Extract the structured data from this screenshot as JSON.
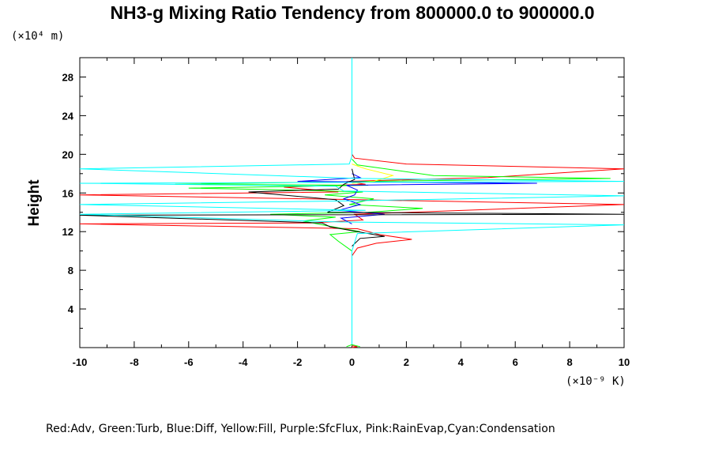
{
  "chart_data": {
    "type": "line",
    "title": "NH3-g Mixing Ratio Tendency from 800000.0 to 900000.0",
    "ylabel": "Height",
    "y_unit_label": "(×10⁴ m)",
    "x_unit_label": "(×10⁻⁹ K)",
    "xlim": [
      -10,
      10
    ],
    "ylim": [
      0,
      30
    ],
    "xticks": [
      "-10",
      "-8",
      "-6",
      "-4",
      "-2",
      "0",
      "2",
      "4",
      "6",
      "8",
      "10"
    ],
    "yticks": [
      "4",
      "8",
      "12",
      "16",
      "20",
      "24",
      "28"
    ],
    "legend_text": "Red:Adv, Green:Turb, Blue:Diff, Yellow:Fill, Purple:SfcFlux, Pink:RainEvap,Cyan:Condensation",
    "grid": false,
    "series": [
      {
        "color": "#ff0000",
        "points": [
          [
            0,
            8
          ],
          [
            0,
            9.5
          ],
          [
            0.2,
            10.3
          ],
          [
            0.9,
            10.8
          ],
          [
            2.2,
            11.2
          ],
          [
            1.0,
            11.7
          ],
          [
            0.2,
            12.3
          ],
          [
            -10,
            12.8
          ],
          [
            -1.5,
            12.9
          ],
          [
            0.4,
            13.2
          ],
          [
            0.1,
            13.8
          ],
          [
            10,
            14.8
          ],
          [
            0.2,
            15.3
          ],
          [
            -10,
            15.8
          ],
          [
            -0.5,
            16.1
          ],
          [
            -2.5,
            16.6
          ],
          [
            0.5,
            16.9
          ],
          [
            -0.2,
            17.2
          ],
          [
            5.0,
            17.6
          ],
          [
            10,
            18.5
          ],
          [
            2.0,
            19.0
          ],
          [
            0.1,
            19.6
          ],
          [
            0,
            20.0
          ]
        ]
      },
      {
        "color": "#00ff00",
        "points": [
          [
            0,
            10.0
          ],
          [
            -0.5,
            11.0
          ],
          [
            -0.8,
            11.7
          ],
          [
            0.3,
            12.0
          ],
          [
            -0.9,
            12.6
          ],
          [
            -1.8,
            13.1
          ],
          [
            -0.6,
            13.5
          ],
          [
            -3.0,
            13.8
          ],
          [
            0.6,
            14.0
          ],
          [
            2.6,
            14.4
          ],
          [
            -0.1,
            14.8
          ],
          [
            0.8,
            15.4
          ],
          [
            -1.0,
            15.8
          ],
          [
            0.4,
            16.1
          ],
          [
            -2.0,
            16.3
          ],
          [
            -6.0,
            16.5
          ],
          [
            0.6,
            16.8
          ],
          [
            -6.5,
            16.9
          ],
          [
            0.5,
            17.2
          ],
          [
            9.5,
            17.5
          ],
          [
            3.0,
            17.8
          ],
          [
            0.2,
            18.9
          ],
          [
            0,
            19.5
          ]
        ]
      },
      {
        "color": "#0000ff",
        "points": [
          [
            0,
            12.8
          ],
          [
            -0.4,
            13.4
          ],
          [
            1.2,
            13.8
          ],
          [
            -0.5,
            14.2
          ],
          [
            0.3,
            14.8
          ],
          [
            -0.3,
            15.4
          ],
          [
            0.1,
            15.8
          ],
          [
            0.2,
            16.3
          ],
          [
            -0.2,
            16.8
          ],
          [
            6.8,
            17.0
          ],
          [
            -2.0,
            17.2
          ],
          [
            0.3,
            17.6
          ],
          [
            0,
            18.0
          ]
        ]
      },
      {
        "color": "#ffff00",
        "points": [
          [
            0,
            17.0
          ],
          [
            0.8,
            17.2
          ],
          [
            1.5,
            17.8
          ],
          [
            0.5,
            18.5
          ],
          [
            0,
            19.0
          ]
        ]
      },
      {
        "color": "#000000",
        "points": [
          [
            0,
            10.5
          ],
          [
            0.3,
            11.3
          ],
          [
            1.2,
            11.5
          ],
          [
            -0.8,
            12.5
          ],
          [
            -1.1,
            12.9
          ],
          [
            -10,
            13.7
          ],
          [
            10,
            13.8
          ],
          [
            -0.9,
            14.0
          ],
          [
            -0.3,
            14.7
          ],
          [
            -0.6,
            15.3
          ],
          [
            -3.8,
            16.1
          ],
          [
            -0.5,
            16.4
          ],
          [
            -0.3,
            16.9
          ],
          [
            0.1,
            17.4
          ],
          [
            0,
            18.5
          ]
        ]
      },
      {
        "color": "#00ffff",
        "points": [
          [
            0,
            0.2
          ],
          [
            0,
            10.0
          ],
          [
            0.2,
            11.8
          ],
          [
            10,
            12.7
          ],
          [
            -0.4,
            13.0
          ],
          [
            -10,
            13.8
          ],
          [
            0.5,
            14.2
          ],
          [
            -10,
            14.8
          ],
          [
            0.2,
            15.2
          ],
          [
            10,
            15.7
          ],
          [
            -0.3,
            16.2
          ],
          [
            -0.6,
            16.7
          ],
          [
            -10,
            17.0
          ],
          [
            10,
            17.2
          ],
          [
            0.2,
            17.5
          ],
          [
            -10,
            18.5
          ],
          [
            -0.1,
            19.0
          ],
          [
            0,
            19.8
          ],
          [
            0,
            30
          ]
        ]
      },
      {
        "color": "#ff0000",
        "points": [
          [
            0,
            0.2
          ],
          [
            0.2,
            0.1
          ],
          [
            0,
            0
          ]
        ]
      },
      {
        "color": "#00ff00",
        "points": [
          [
            -0.2,
            0.1
          ],
          [
            0,
            0.3
          ],
          [
            0.3,
            0.1
          ]
        ]
      }
    ]
  }
}
